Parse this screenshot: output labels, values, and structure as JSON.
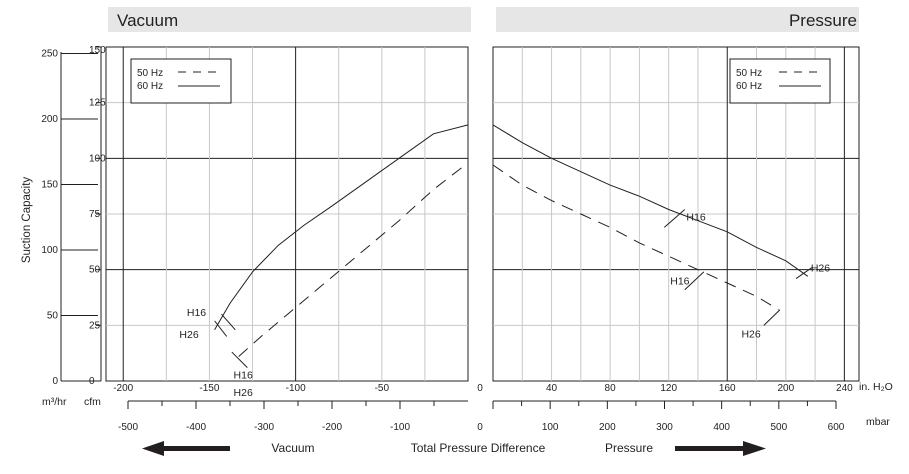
{
  "chart_data": [
    {
      "type": "line",
      "panel": "left",
      "title": "Vacuum",
      "x_axis_top": {
        "unit": "in. H₂O",
        "ticks": [
          -200,
          -150,
          -100,
          -50
        ],
        "labels": [
          "-200",
          "-150",
          "-100",
          "-50"
        ],
        "range": [
          -210,
          0
        ]
      },
      "x_axis_bottom": {
        "unit": "mbar",
        "ticks": [
          -500,
          -400,
          -300,
          -200,
          -100
        ],
        "labels": [
          "-500",
          "-400",
          "-300",
          "-200",
          "-100"
        ]
      },
      "y_axis_cfm": {
        "ticks": [
          0,
          25,
          50,
          75,
          100,
          125,
          150
        ],
        "labels": [
          "0",
          "25",
          "50",
          "75",
          "100",
          "125",
          "150"
        ],
        "range": [
          0,
          150
        ]
      },
      "y_axis_m3hr": {
        "ticks": [
          0,
          50,
          100,
          150,
          200,
          250
        ],
        "labels": [
          "0",
          "50",
          "100",
          "150",
          "200",
          "250"
        ]
      },
      "grid": true,
      "legend": {
        "position": "top-left",
        "entries": [
          {
            "label": "50 Hz",
            "style": "dashed"
          },
          {
            "label": "60 Hz",
            "style": "solid"
          }
        ]
      },
      "series": [
        {
          "name": "60 Hz",
          "style": "solid",
          "x": [
            -147,
            -138,
            -125,
            -110,
            -95,
            -80,
            -60,
            -40,
            -20,
            0
          ],
          "y": [
            23,
            35,
            49,
            61,
            70,
            78,
            89,
            100,
            111,
            115
          ]
        },
        {
          "name": "50 Hz",
          "style": "dashed",
          "x": [
            -133,
            -120,
            -100,
            -80,
            -60,
            -40,
            -20,
            0
          ],
          "y": [
            11,
            20,
            33,
            46,
            59,
            72,
            86,
            98
          ]
        }
      ],
      "annotations": [
        {
          "text": "H16",
          "x": -148,
          "y": 27
        },
        {
          "text": "H26",
          "x": -150,
          "y": 22
        },
        {
          "text": "H16",
          "x": -136,
          "y": 10
        },
        {
          "text": "H26",
          "x": -136,
          "y": 4
        }
      ]
    },
    {
      "type": "line",
      "panel": "right",
      "title": "Pressure",
      "x_axis_top": {
        "unit": "in. H₂O",
        "ticks": [
          0,
          40,
          80,
          120,
          160,
          200,
          240
        ],
        "labels": [
          "0",
          "40",
          "80",
          "120",
          "160",
          "200",
          "240"
        ],
        "range": [
          0,
          250
        ]
      },
      "x_axis_bottom": {
        "unit": "mbar",
        "ticks": [
          0,
          100,
          200,
          300,
          400,
          500,
          600
        ],
        "labels": [
          "0",
          "100",
          "200",
          "300",
          "400",
          "500",
          "600"
        ]
      },
      "y_axis_cfm": {
        "range": [
          0,
          150
        ]
      },
      "grid": true,
      "legend": {
        "position": "top-right",
        "entries": [
          {
            "label": "50 Hz",
            "style": "dashed"
          },
          {
            "label": "60 Hz",
            "style": "solid"
          }
        ]
      },
      "series": [
        {
          "name": "60 Hz",
          "style": "solid",
          "x": [
            0,
            20,
            40,
            60,
            80,
            100,
            120,
            140,
            160,
            180,
            200,
            215
          ],
          "y": [
            115,
            107,
            100,
            94,
            88,
            83,
            77,
            72,
            67,
            60,
            54,
            47
          ]
        },
        {
          "name": "50 Hz",
          "style": "dashed",
          "x": [
            0,
            20,
            40,
            60,
            80,
            100,
            120,
            140,
            160,
            180,
            195
          ],
          "y": [
            97,
            88,
            81,
            75,
            69,
            62,
            56,
            50,
            44,
            38,
            32
          ]
        }
      ],
      "annotations": [
        {
          "text": "H16",
          "x": 128,
          "y": 72
        },
        {
          "text": "H16",
          "x": 132,
          "y": 46
        },
        {
          "text": "H26",
          "x": 213,
          "y": 51
        },
        {
          "text": "H26",
          "x": 182,
          "y": 24
        }
      ]
    }
  ],
  "labels": {
    "y_axis_title": "Suction Capacity",
    "unit_m3hr": "m³/hr",
    "unit_cfm": "cfm",
    "bottom_vacuum": "Vacuum",
    "bottom_center": "Total Pressure Difference",
    "bottom_pressure": "Pressure"
  }
}
